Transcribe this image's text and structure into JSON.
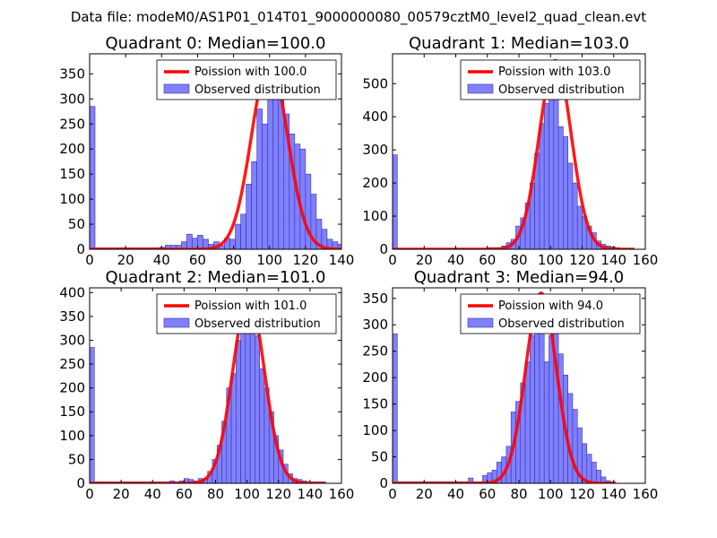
{
  "suptitle": "Data file: modeM0/AS1P01_014T01_9000000080_00579cztM0_level2_quad_clean.evt",
  "colors": {
    "bar_fill": "#8080ff",
    "bar_edge": "#3333aa",
    "curve": "#ff0000",
    "axes": "#000000",
    "background": "#ffffff"
  },
  "chart_data": [
    {
      "type": "bar",
      "title": "Quadrant 0: Median=100.0",
      "xlim": [
        0,
        140
      ],
      "ylim": [
        0,
        390
      ],
      "xticks": [
        0,
        20,
        40,
        60,
        80,
        100,
        120,
        140
      ],
      "yticks": [
        0,
        50,
        100,
        150,
        200,
        250,
        300,
        350
      ],
      "legend": {
        "position": "top-right",
        "curve_label": "Poission with 100.0",
        "bar_label": "Observed distribution"
      },
      "bin_width": 3,
      "bins": [
        [
          0,
          285
        ],
        [
          3,
          3
        ],
        [
          6,
          3
        ],
        [
          9,
          3
        ],
        [
          12,
          3
        ],
        [
          15,
          3
        ],
        [
          18,
          3
        ],
        [
          21,
          3
        ],
        [
          24,
          3
        ],
        [
          27,
          3
        ],
        [
          30,
          3
        ],
        [
          33,
          3
        ],
        [
          36,
          3
        ],
        [
          39,
          4
        ],
        [
          42,
          8
        ],
        [
          45,
          8
        ],
        [
          48,
          8
        ],
        [
          51,
          15
        ],
        [
          54,
          30
        ],
        [
          57,
          22
        ],
        [
          60,
          28
        ],
        [
          63,
          20
        ],
        [
          66,
          10
        ],
        [
          69,
          15
        ],
        [
          72,
          8
        ],
        [
          75,
          22
        ],
        [
          78,
          20
        ],
        [
          81,
          50
        ],
        [
          84,
          70
        ],
        [
          87,
          130
        ],
        [
          90,
          175
        ],
        [
          93,
          280
        ],
        [
          96,
          250
        ],
        [
          99,
          360
        ],
        [
          102,
          300
        ],
        [
          105,
          375
        ],
        [
          108,
          270
        ],
        [
          111,
          230
        ],
        [
          114,
          210
        ],
        [
          117,
          200
        ],
        [
          120,
          150
        ],
        [
          123,
          110
        ],
        [
          126,
          60
        ],
        [
          129,
          40
        ],
        [
          132,
          20
        ],
        [
          135,
          15
        ],
        [
          138,
          10
        ]
      ],
      "curve": {
        "mean": 100.0,
        "peak": 375,
        "xmax": 140
      }
    },
    {
      "type": "bar",
      "title": "Quadrant 1: Median=103.0",
      "xlim": [
        0,
        160
      ],
      "ylim": [
        0,
        590
      ],
      "xticks": [
        0,
        20,
        40,
        60,
        80,
        100,
        120,
        140,
        160
      ],
      "yticks": [
        0,
        100,
        200,
        300,
        400,
        500
      ],
      "legend": {
        "position": "top-right",
        "curve_label": "Poission with 103.0",
        "bar_label": "Observed distribution"
      },
      "bin_width": 3,
      "bins": [
        [
          0,
          285
        ],
        [
          3,
          3
        ],
        [
          6,
          3
        ],
        [
          9,
          3
        ],
        [
          12,
          3
        ],
        [
          15,
          3
        ],
        [
          18,
          3
        ],
        [
          21,
          3
        ],
        [
          24,
          3
        ],
        [
          27,
          3
        ],
        [
          30,
          3
        ],
        [
          33,
          3
        ],
        [
          36,
          3
        ],
        [
          39,
          3
        ],
        [
          42,
          3
        ],
        [
          45,
          3
        ],
        [
          48,
          3
        ],
        [
          51,
          3
        ],
        [
          54,
          3
        ],
        [
          57,
          3
        ],
        [
          60,
          5
        ],
        [
          63,
          5
        ],
        [
          66,
          5
        ],
        [
          69,
          10
        ],
        [
          72,
          20
        ],
        [
          75,
          30
        ],
        [
          78,
          70
        ],
        [
          81,
          95
        ],
        [
          84,
          140
        ],
        [
          87,
          200
        ],
        [
          90,
          290
        ],
        [
          93,
          380
        ],
        [
          96,
          440
        ],
        [
          99,
          560
        ],
        [
          102,
          470
        ],
        [
          105,
          370
        ],
        [
          108,
          340
        ],
        [
          111,
          260
        ],
        [
          114,
          200
        ],
        [
          117,
          130
        ],
        [
          120,
          100
        ],
        [
          123,
          70
        ],
        [
          126,
          50
        ],
        [
          129,
          25
        ],
        [
          132,
          15
        ],
        [
          135,
          10
        ],
        [
          138,
          7
        ],
        [
          141,
          5
        ],
        [
          144,
          3
        ],
        [
          147,
          3
        ],
        [
          150,
          3
        ]
      ],
      "curve": {
        "mean": 103.0,
        "peak": 570,
        "xmax": 153
      }
    },
    {
      "type": "bar",
      "title": "Quadrant 2: Median=101.0",
      "xlim": [
        0,
        160
      ],
      "ylim": [
        0,
        410
      ],
      "xticks": [
        0,
        20,
        40,
        60,
        80,
        100,
        120,
        140,
        160
      ],
      "yticks": [
        0,
        50,
        100,
        150,
        200,
        250,
        300,
        350,
        400
      ],
      "legend": {
        "position": "top-right",
        "curve_label": "Poission with 101.0",
        "bar_label": "Observed distribution"
      },
      "bin_width": 3,
      "bins": [
        [
          0,
          285
        ],
        [
          3,
          3
        ],
        [
          6,
          3
        ],
        [
          9,
          3
        ],
        [
          12,
          3
        ],
        [
          15,
          3
        ],
        [
          18,
          3
        ],
        [
          21,
          3
        ],
        [
          24,
          3
        ],
        [
          27,
          3
        ],
        [
          30,
          3
        ],
        [
          33,
          3
        ],
        [
          36,
          3
        ],
        [
          39,
          3
        ],
        [
          42,
          3
        ],
        [
          45,
          3
        ],
        [
          48,
          3
        ],
        [
          51,
          5
        ],
        [
          54,
          3
        ],
        [
          57,
          5
        ],
        [
          60,
          10
        ],
        [
          63,
          8
        ],
        [
          66,
          5
        ],
        [
          69,
          10
        ],
        [
          72,
          10
        ],
        [
          75,
          25
        ],
        [
          78,
          50
        ],
        [
          81,
          80
        ],
        [
          84,
          130
        ],
        [
          87,
          200
        ],
        [
          90,
          230
        ],
        [
          93,
          300
        ],
        [
          96,
          350
        ],
        [
          99,
          350
        ],
        [
          102,
          330
        ],
        [
          105,
          310
        ],
        [
          108,
          240
        ],
        [
          111,
          200
        ],
        [
          114,
          150
        ],
        [
          117,
          100
        ],
        [
          120,
          70
        ],
        [
          123,
          40
        ],
        [
          126,
          20
        ],
        [
          129,
          10
        ],
        [
          132,
          8
        ],
        [
          135,
          5
        ],
        [
          138,
          3
        ],
        [
          141,
          3
        ],
        [
          144,
          3
        ],
        [
          147,
          3
        ]
      ],
      "curve": {
        "mean": 101.0,
        "peak": 390,
        "xmax": 149
      }
    },
    {
      "type": "bar",
      "title": "Quadrant 3: Median=94.0",
      "xlim": [
        0,
        160
      ],
      "ylim": [
        0,
        370
      ],
      "xticks": [
        0,
        20,
        40,
        60,
        80,
        100,
        120,
        140,
        160
      ],
      "yticks": [
        0,
        50,
        100,
        150,
        200,
        250,
        300,
        350
      ],
      "legend": {
        "position": "top-right",
        "curve_label": "Poission with 94.0",
        "bar_label": "Observed distribution"
      },
      "bin_width": 3,
      "bins": [
        [
          0,
          283
        ],
        [
          3,
          3
        ],
        [
          6,
          3
        ],
        [
          9,
          3
        ],
        [
          12,
          3
        ],
        [
          15,
          3
        ],
        [
          18,
          3
        ],
        [
          21,
          3
        ],
        [
          24,
          3
        ],
        [
          27,
          3
        ],
        [
          30,
          3
        ],
        [
          33,
          3
        ],
        [
          36,
          3
        ],
        [
          39,
          3
        ],
        [
          42,
          3
        ],
        [
          45,
          3
        ],
        [
          48,
          10
        ],
        [
          51,
          3
        ],
        [
          54,
          3
        ],
        [
          57,
          15
        ],
        [
          60,
          20
        ],
        [
          63,
          25
        ],
        [
          66,
          40
        ],
        [
          69,
          50
        ],
        [
          72,
          70
        ],
        [
          75,
          135
        ],
        [
          78,
          155
        ],
        [
          81,
          190
        ],
        [
          84,
          230
        ],
        [
          87,
          280
        ],
        [
          90,
          325
        ],
        [
          93,
          320
        ],
        [
          96,
          230
        ],
        [
          99,
          280
        ],
        [
          102,
          340
        ],
        [
          105,
          245
        ],
        [
          108,
          205
        ],
        [
          111,
          170
        ],
        [
          114,
          140
        ],
        [
          117,
          105
        ],
        [
          120,
          75
        ],
        [
          123,
          55
        ],
        [
          126,
          40
        ],
        [
          129,
          25
        ],
        [
          132,
          12
        ],
        [
          135,
          5
        ],
        [
          138,
          3
        ]
      ],
      "curve": {
        "mean": 94.0,
        "peak": 360,
        "xmax": 141
      }
    }
  ]
}
